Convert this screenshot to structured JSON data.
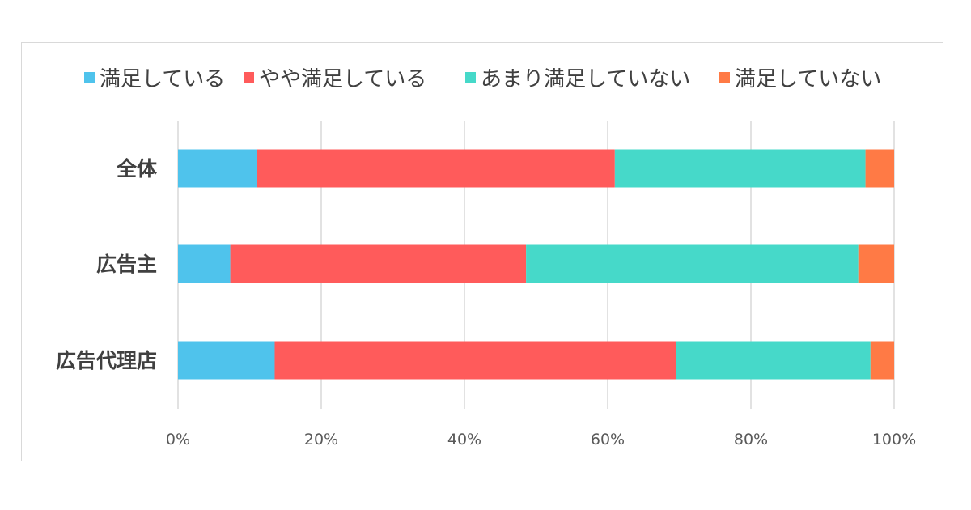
{
  "chart_data": {
    "type": "bar",
    "orientation": "horizontal",
    "stacked": "percent",
    "categories": [
      "全体",
      "広告主",
      "広告代理店"
    ],
    "series": [
      {
        "name": "満足している",
        "color": "#4FC3EC",
        "values": [
          11.0,
          7.3,
          13.5
        ]
      },
      {
        "name": "やや満足している",
        "color": "#FF5B5B",
        "values": [
          50.0,
          41.3,
          56.0
        ]
      },
      {
        "name": "あまり満足していない",
        "color": "#46D9C9",
        "values": [
          35.0,
          46.4,
          27.2
        ]
      },
      {
        "name": "満足していない",
        "color": "#FF7A45",
        "values": [
          4.0,
          5.0,
          3.3
        ]
      }
    ],
    "xlim": [
      0,
      100
    ],
    "xticks": [
      "0%",
      "20%",
      "40%",
      "60%",
      "80%",
      "100%"
    ],
    "grid": true,
    "legend": "top"
  }
}
